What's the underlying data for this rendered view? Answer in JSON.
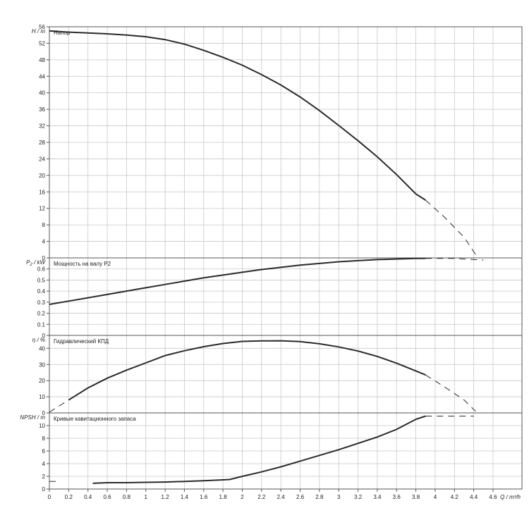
{
  "chart_data": [
    {
      "type": "line",
      "panel_key": "head",
      "title": "Напор",
      "ylabel_sym": "H",
      "ylabel_sub": "",
      "ylabel_unit": " / m",
      "ylim": [
        0,
        56
      ],
      "yticks": [
        0,
        4,
        8,
        12,
        16,
        20,
        24,
        28,
        32,
        36,
        40,
        44,
        48,
        52,
        56
      ],
      "solid": {
        "x": [
          0,
          0.2,
          0.4,
          0.6,
          0.8,
          1.0,
          1.2,
          1.4,
          1.6,
          1.8,
          2.0,
          2.2,
          2.4,
          2.6,
          2.8,
          3.0,
          3.2,
          3.4,
          3.6,
          3.8,
          3.9
        ],
        "y": [
          55.0,
          54.7,
          54.5,
          54.3,
          54.0,
          53.6,
          52.9,
          51.8,
          50.3,
          48.6,
          46.7,
          44.4,
          41.9,
          39.0,
          35.7,
          32.1,
          28.4,
          24.5,
          20.2,
          15.5,
          14.0
        ]
      },
      "dashed": {
        "x": [
          3.9,
          4.1,
          4.3,
          4.42
        ],
        "y": [
          14.0,
          9.8,
          5.0,
          0.8
        ]
      }
    },
    {
      "type": "line",
      "panel_key": "power",
      "title": "Мощность на валу P2",
      "ylabel_sym": "P",
      "ylabel_sub": "2",
      "ylabel_unit": " / kW",
      "ylim": [
        0,
        0.7
      ],
      "yticks": [
        0,
        0.1,
        0.2,
        0.3,
        0.4,
        0.5,
        0.6
      ],
      "ytick_labels": [
        "0",
        "0.1",
        "0.2",
        "0.3",
        "0.4",
        "0.5",
        "0.6"
      ],
      "solid": {
        "x": [
          0,
          0.2,
          0.4,
          0.6,
          0.8,
          1.0,
          1.2,
          1.4,
          1.6,
          1.8,
          2.0,
          2.2,
          2.4,
          2.6,
          2.8,
          3.0,
          3.2,
          3.4,
          3.6,
          3.8,
          3.9
        ],
        "y": [
          0.28,
          0.31,
          0.34,
          0.37,
          0.4,
          0.43,
          0.46,
          0.49,
          0.52,
          0.545,
          0.57,
          0.595,
          0.615,
          0.635,
          0.65,
          0.665,
          0.675,
          0.685,
          0.69,
          0.695,
          0.695
        ]
      },
      "dashed": {
        "x": [
          3.9,
          4.2,
          4.5
        ],
        "y": [
          0.695,
          0.695,
          0.68
        ]
      }
    },
    {
      "type": "line",
      "panel_key": "eff",
      "title": "Гидравлический КПД",
      "ylabel_sym": "η",
      "ylabel_sub": "",
      "ylabel_unit": " / %",
      "ylim": [
        0,
        48
      ],
      "yticks": [
        0,
        10,
        20,
        30,
        40
      ],
      "solid": {
        "x": [
          0.2,
          0.4,
          0.6,
          0.8,
          1.0,
          1.2,
          1.4,
          1.6,
          1.8,
          2.0,
          2.2,
          2.4,
          2.6,
          2.8,
          3.0,
          3.2,
          3.4,
          3.6,
          3.8,
          3.9
        ],
        "y": [
          8.0,
          15.5,
          21.5,
          26.5,
          31.0,
          35.5,
          38.5,
          41.0,
          43.0,
          44.3,
          44.6,
          44.7,
          44.2,
          42.8,
          40.9,
          38.3,
          35.0,
          30.8,
          26.0,
          23.5
        ]
      },
      "dashed": {
        "x": [
          0,
          0.2
        ],
        "y": [
          0.5,
          8.0
        ],
        "x2": [
          3.9,
          4.1,
          4.3,
          4.42
        ],
        "y2": [
          23.5,
          16.0,
          8.0,
          1.0
        ]
      }
    },
    {
      "type": "line",
      "panel_key": "npsh",
      "title": "Кривые кавитационного запаса",
      "ylabel_sym": "NPSH",
      "ylabel_sub": "",
      "ylabel_unit": " / m",
      "ylim": [
        0,
        12
      ],
      "yticks": [
        0,
        2,
        4,
        6,
        8,
        10
      ],
      "solid": {
        "x": [
          0.45,
          0.6,
          0.8,
          1.0,
          1.2,
          1.4,
          1.6,
          1.8,
          1.87,
          2.0,
          2.2,
          2.4,
          2.6,
          2.8,
          3.0,
          3.2,
          3.4,
          3.6,
          3.8,
          3.9
        ],
        "y": [
          0.9,
          1.0,
          1.0,
          1.05,
          1.1,
          1.2,
          1.3,
          1.45,
          1.5,
          2.0,
          2.7,
          3.5,
          4.4,
          5.3,
          6.2,
          7.2,
          8.2,
          9.4,
          11.0,
          11.5
        ]
      },
      "dashed": {
        "x": [
          0,
          0.1
        ],
        "y": [
          1.2,
          1.2
        ],
        "x2": [
          3.9,
          4.4
        ],
        "y2": [
          11.5,
          11.5
        ]
      }
    }
  ],
  "x_axis": {
    "label": "Q / m³/h",
    "xlim": [
      0,
      4.9
    ],
    "ticks": [
      "0",
      "0.2",
      "0.4",
      "0.6",
      "0.8",
      "1",
      "1.2",
      "1.4",
      "1.6",
      "1.8",
      "2",
      "2.2",
      "2.4",
      "2.6",
      "2.8",
      "3",
      "3.2",
      "3.4",
      "3.6",
      "3.8",
      "4",
      "4.2",
      "4.4",
      "4.6"
    ],
    "tick_values": [
      0,
      0.2,
      0.4,
      0.6,
      0.8,
      1.0,
      1.2,
      1.4,
      1.6,
      1.8,
      2.0,
      2.2,
      2.4,
      2.6,
      2.8,
      3.0,
      3.2,
      3.4,
      3.6,
      3.8,
      4.0,
      4.2,
      4.4,
      4.6
    ]
  },
  "grid": true
}
